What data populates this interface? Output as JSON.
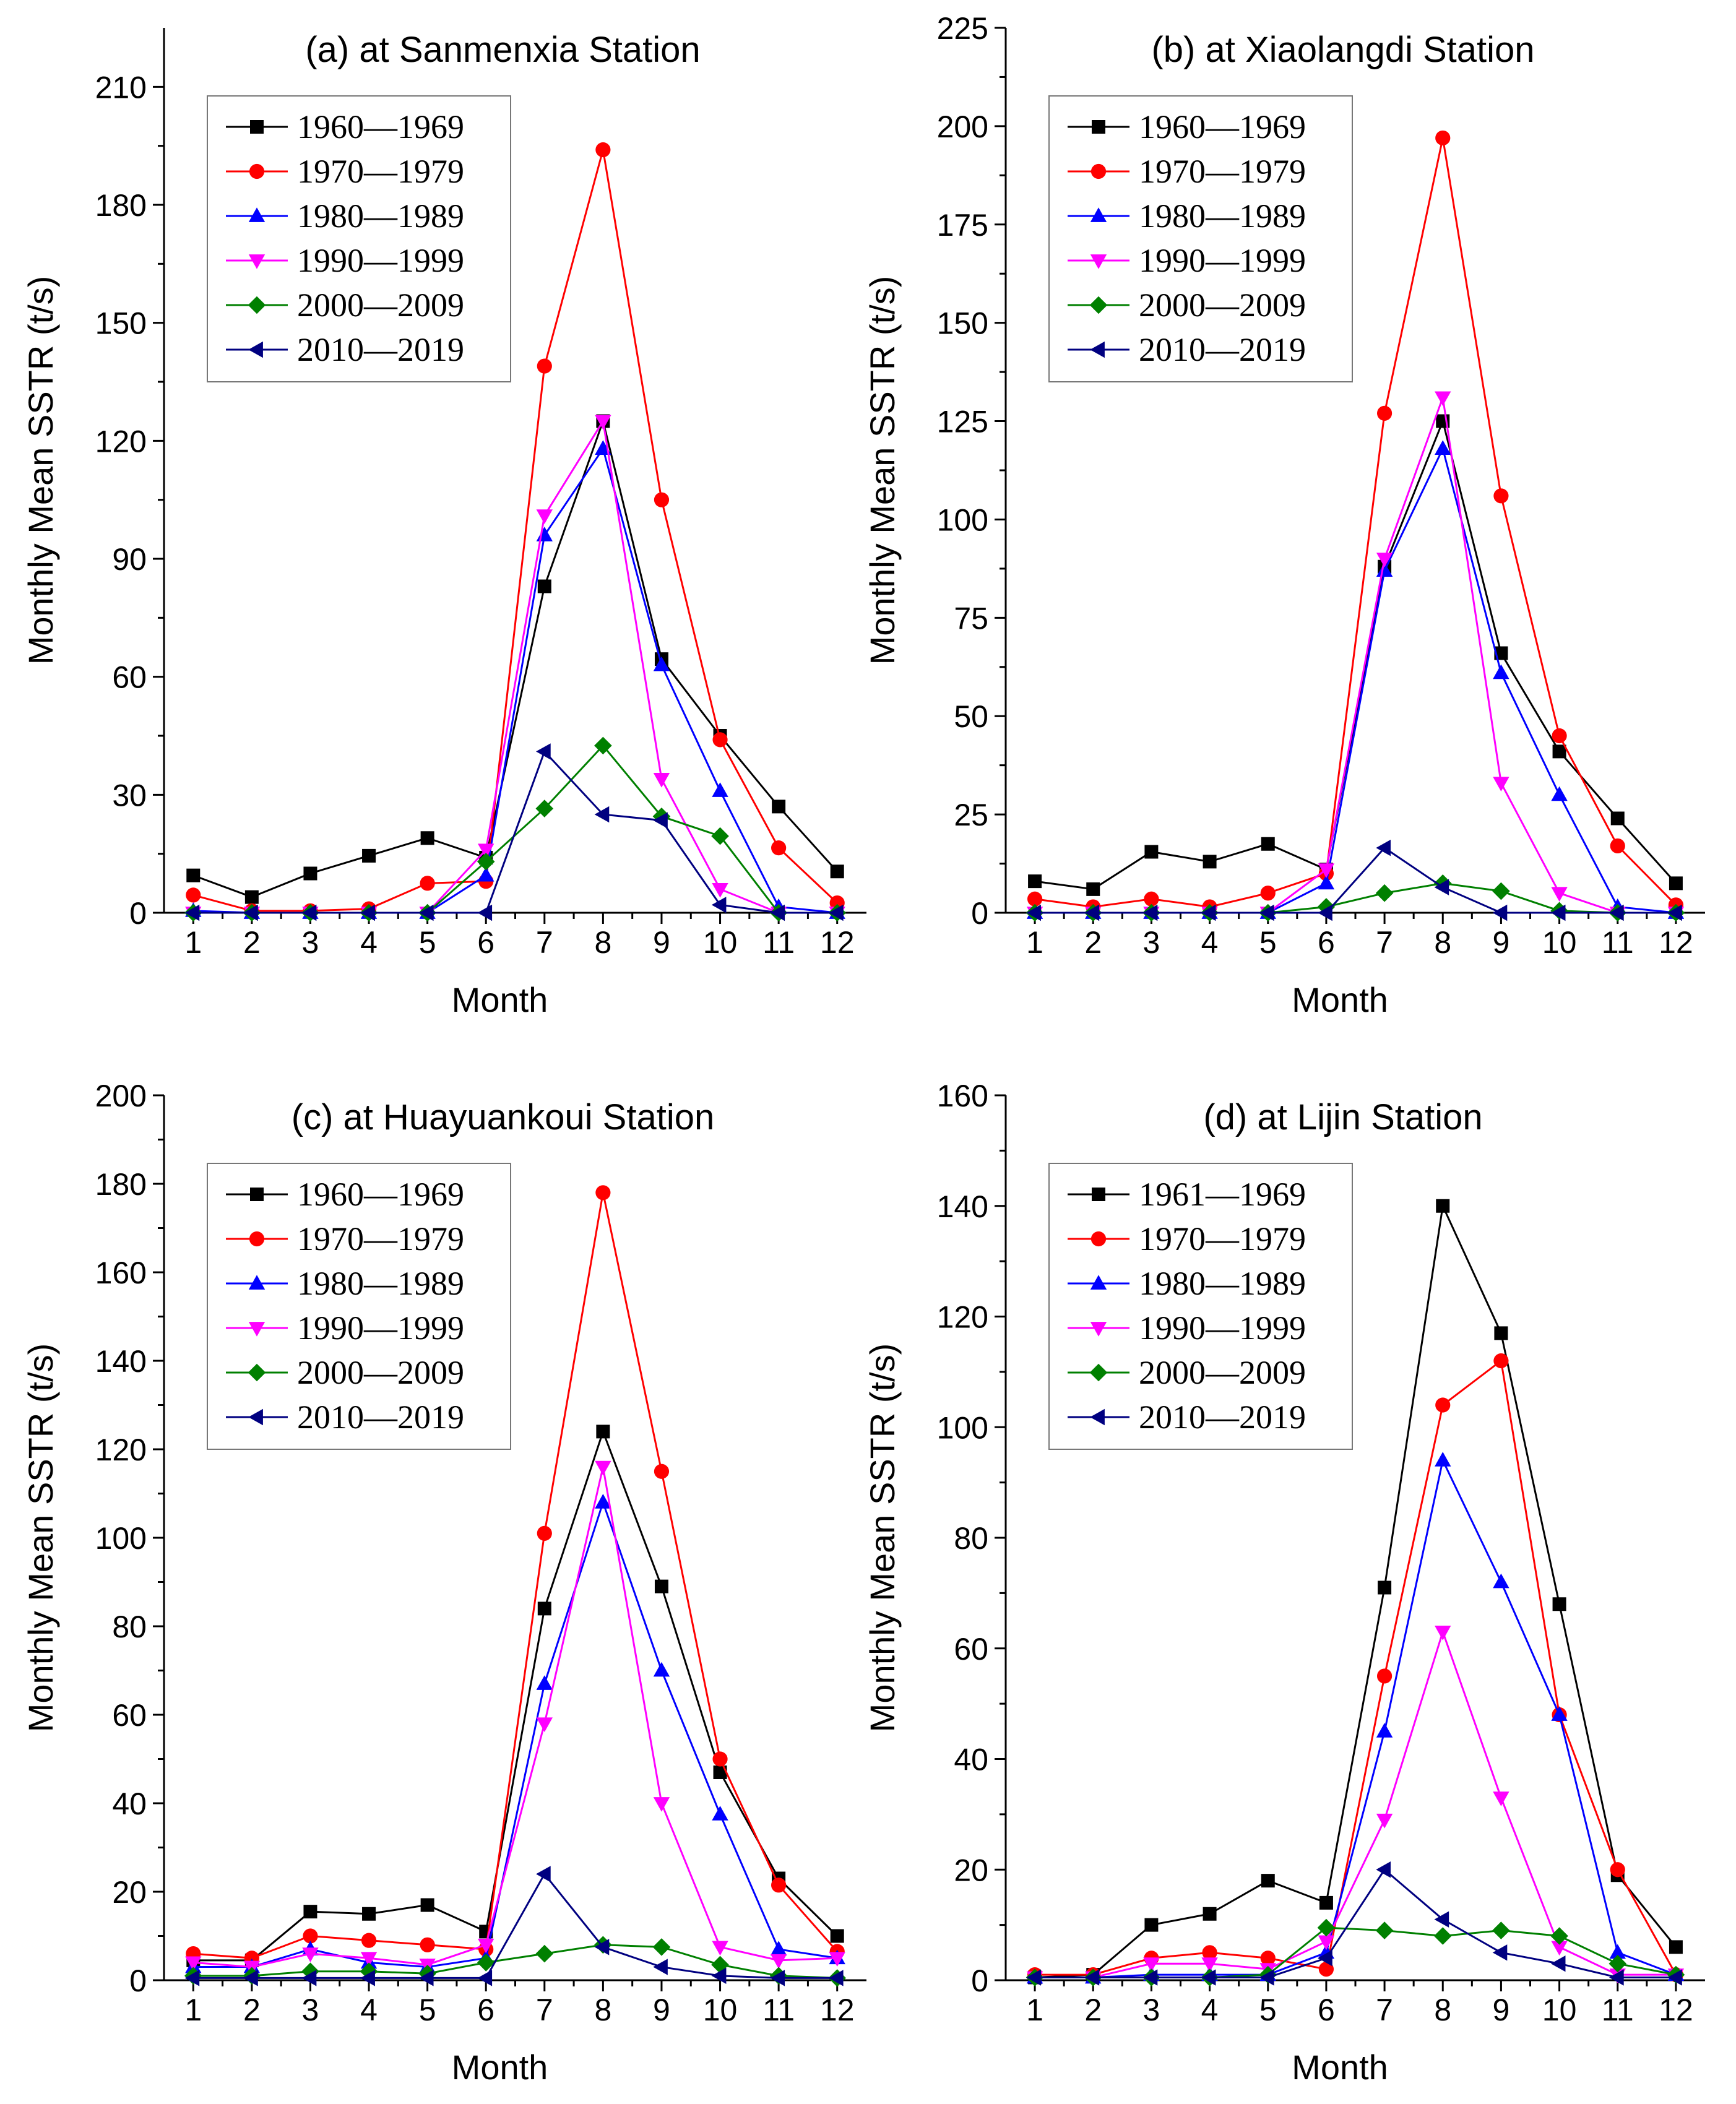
{
  "chart_data": [
    {
      "type": "line",
      "title": "(a) at Sanmenxia Station",
      "xlabel": "Month",
      "ylabel": "Monthly Mean SSTR (t/s)",
      "x": [
        1,
        2,
        3,
        4,
        5,
        6,
        7,
        8,
        9,
        10,
        11,
        12
      ],
      "xlim": [
        0.5,
        12.5
      ],
      "ylim": [
        0,
        225
      ],
      "yticks": [
        0,
        30,
        60,
        90,
        120,
        150,
        180,
        210
      ],
      "legend_position": "top-left",
      "series": [
        {
          "name": "1960—1969",
          "color": "#000000",
          "marker": "square",
          "values": [
            9.5,
            4,
            10,
            14.5,
            19,
            14,
            83,
            125,
            64.5,
            45,
            27,
            10.5
          ]
        },
        {
          "name": "1970—1979",
          "color": "#ff0000",
          "marker": "circle",
          "values": [
            4.5,
            0.5,
            0.5,
            1,
            7.5,
            8,
            139,
            194,
            105,
            44,
            16.5,
            2.5
          ]
        },
        {
          "name": "1980—1989",
          "color": "#0000ff",
          "marker": "triangle-up",
          "values": [
            0.5,
            0,
            0,
            0,
            0,
            9.5,
            96,
            118,
            63,
            31,
            1.5,
            0
          ]
        },
        {
          "name": "1990—1999",
          "color": "#ff00ff",
          "marker": "triangle-down",
          "values": [
            0,
            0,
            0,
            0,
            0,
            16,
            101,
            125,
            34,
            6,
            0,
            0
          ]
        },
        {
          "name": "2000—2009",
          "color": "#008000",
          "marker": "diamond",
          "values": [
            0,
            0,
            0,
            0,
            0,
            13,
            26.5,
            42.5,
            24.5,
            19.5,
            0,
            0
          ]
        },
        {
          "name": "2010—2019",
          "color": "#000080",
          "marker": "triangle-left",
          "values": [
            0,
            0,
            0,
            0,
            0,
            0,
            41,
            25,
            23.5,
            2,
            0,
            0
          ]
        }
      ]
    },
    {
      "type": "line",
      "title": "(b) at Xiaolangdi Station",
      "xlabel": "Month",
      "ylabel": "Monthly Mean SSTR (t/s)",
      "x": [
        1,
        2,
        3,
        4,
        5,
        6,
        7,
        8,
        9,
        10,
        11,
        12
      ],
      "xlim": [
        0.5,
        12.5
      ],
      "ylim": [
        0,
        225
      ],
      "yticks": [
        0,
        25,
        50,
        75,
        100,
        125,
        150,
        175,
        200,
        225
      ],
      "legend_position": "top-left",
      "series": [
        {
          "name": "1960—1969",
          "color": "#000000",
          "marker": "square",
          "values": [
            8,
            6,
            15.5,
            13,
            17.5,
            11,
            88,
            125,
            66,
            41,
            24,
            7.5
          ]
        },
        {
          "name": "1970—1979",
          "color": "#ff0000",
          "marker": "circle",
          "values": [
            3.5,
            1.5,
            3.5,
            1.5,
            5,
            10,
            127,
            197,
            106,
            45,
            17,
            2
          ]
        },
        {
          "name": "1980—1989",
          "color": "#0000ff",
          "marker": "triangle-up",
          "values": [
            0,
            0,
            0,
            0,
            0,
            7.5,
            87,
            118,
            61,
            30,
            1.5,
            0
          ]
        },
        {
          "name": "1990—1999",
          "color": "#ff00ff",
          "marker": "triangle-down",
          "values": [
            0,
            0,
            0,
            0,
            0,
            11,
            90,
            131,
            33,
            5,
            0,
            0
          ]
        },
        {
          "name": "2000—2009",
          "color": "#008000",
          "marker": "diamond",
          "values": [
            0,
            0,
            0,
            0,
            0,
            1.5,
            5,
            7.5,
            5.5,
            0.5,
            0,
            0
          ]
        },
        {
          "name": "2010—2019",
          "color": "#000080",
          "marker": "triangle-left",
          "values": [
            0,
            0,
            0,
            0,
            0,
            0,
            16.5,
            6.5,
            0,
            0,
            0,
            0
          ]
        }
      ]
    },
    {
      "type": "line",
      "title": "(c) at Huayuankoui Station",
      "xlabel": "Month",
      "ylabel": "Monthly Mean SSTR (t/s)",
      "x": [
        1,
        2,
        3,
        4,
        5,
        6,
        7,
        8,
        9,
        10,
        11,
        12
      ],
      "xlim": [
        0.5,
        12.5
      ],
      "ylim": [
        0,
        200
      ],
      "yticks": [
        0,
        20,
        40,
        60,
        80,
        100,
        120,
        140,
        160,
        180,
        200
      ],
      "legend_position": "top-left",
      "series": [
        {
          "name": "1960—1969",
          "color": "#000000",
          "marker": "square",
          "values": [
            4.5,
            4.5,
            15.5,
            15,
            17,
            11,
            84,
            124,
            89,
            47,
            23,
            10
          ]
        },
        {
          "name": "1970—1979",
          "color": "#ff0000",
          "marker": "circle",
          "values": [
            6,
            5,
            10,
            9,
            8,
            7,
            101,
            178,
            115,
            50,
            21.5,
            6.5
          ]
        },
        {
          "name": "1980—1989",
          "color": "#0000ff",
          "marker": "triangle-up",
          "values": [
            3,
            3,
            7,
            4,
            3,
            5,
            67,
            108,
            70,
            37.5,
            7,
            5
          ]
        },
        {
          "name": "1990—1999",
          "color": "#ff00ff",
          "marker": "triangle-down",
          "values": [
            4,
            3,
            6,
            5,
            3.5,
            8,
            58,
            116,
            40,
            7.5,
            4.5,
            5
          ]
        },
        {
          "name": "2000—2009",
          "color": "#008000",
          "marker": "diamond",
          "values": [
            1,
            1,
            2,
            2,
            1.5,
            4,
            6,
            8,
            7.5,
            3.5,
            1,
            0.5
          ]
        },
        {
          "name": "2010—2019",
          "color": "#000080",
          "marker": "triangle-left",
          "values": [
            0.5,
            0.5,
            0.5,
            0.5,
            0.5,
            0.5,
            24,
            7.5,
            3,
            1,
            0.5,
            0.5
          ]
        }
      ]
    },
    {
      "type": "line",
      "title": "(d) at Lijin Station",
      "xlabel": "Month",
      "ylabel": "Monthly Mean SSTR (t/s)",
      "x": [
        1,
        2,
        3,
        4,
        5,
        6,
        7,
        8,
        9,
        10,
        11,
        12
      ],
      "xlim": [
        0.5,
        12.5
      ],
      "ylim": [
        0,
        160
      ],
      "yticks": [
        0,
        20,
        40,
        60,
        80,
        100,
        120,
        140,
        160
      ],
      "legend_position": "top-left",
      "series": [
        {
          "name": "1961—1969",
          "color": "#000000",
          "marker": "square",
          "values": [
            0.5,
            1,
            10,
            12,
            18,
            14,
            71,
            140,
            117,
            68,
            19,
            6
          ]
        },
        {
          "name": "1970—1979",
          "color": "#ff0000",
          "marker": "circle",
          "values": [
            1,
            1,
            4,
            5,
            4,
            2,
            55,
            104,
            112,
            48,
            20,
            1
          ]
        },
        {
          "name": "1980—1989",
          "color": "#0000ff",
          "marker": "triangle-up",
          "values": [
            0.5,
            0.5,
            1,
            1,
            1,
            5,
            45,
            94,
            72,
            48,
            5,
            1
          ]
        },
        {
          "name": "1990—1999",
          "color": "#ff00ff",
          "marker": "triangle-down",
          "values": [
            0.5,
            0.5,
            3,
            3,
            2,
            7,
            29,
            63,
            33,
            6,
            1,
            1
          ]
        },
        {
          "name": "2000—2009",
          "color": "#008000",
          "marker": "diamond",
          "values": [
            0.5,
            0.5,
            0.5,
            0.5,
            1,
            9.5,
            9,
            8,
            9,
            8,
            3,
            1
          ]
        },
        {
          "name": "2010—2019",
          "color": "#000080",
          "marker": "triangle-left",
          "values": [
            0.5,
            0.5,
            0.5,
            0.5,
            0.5,
            4,
            20,
            11,
            5,
            3,
            0.5,
            0.5
          ]
        }
      ]
    }
  ]
}
